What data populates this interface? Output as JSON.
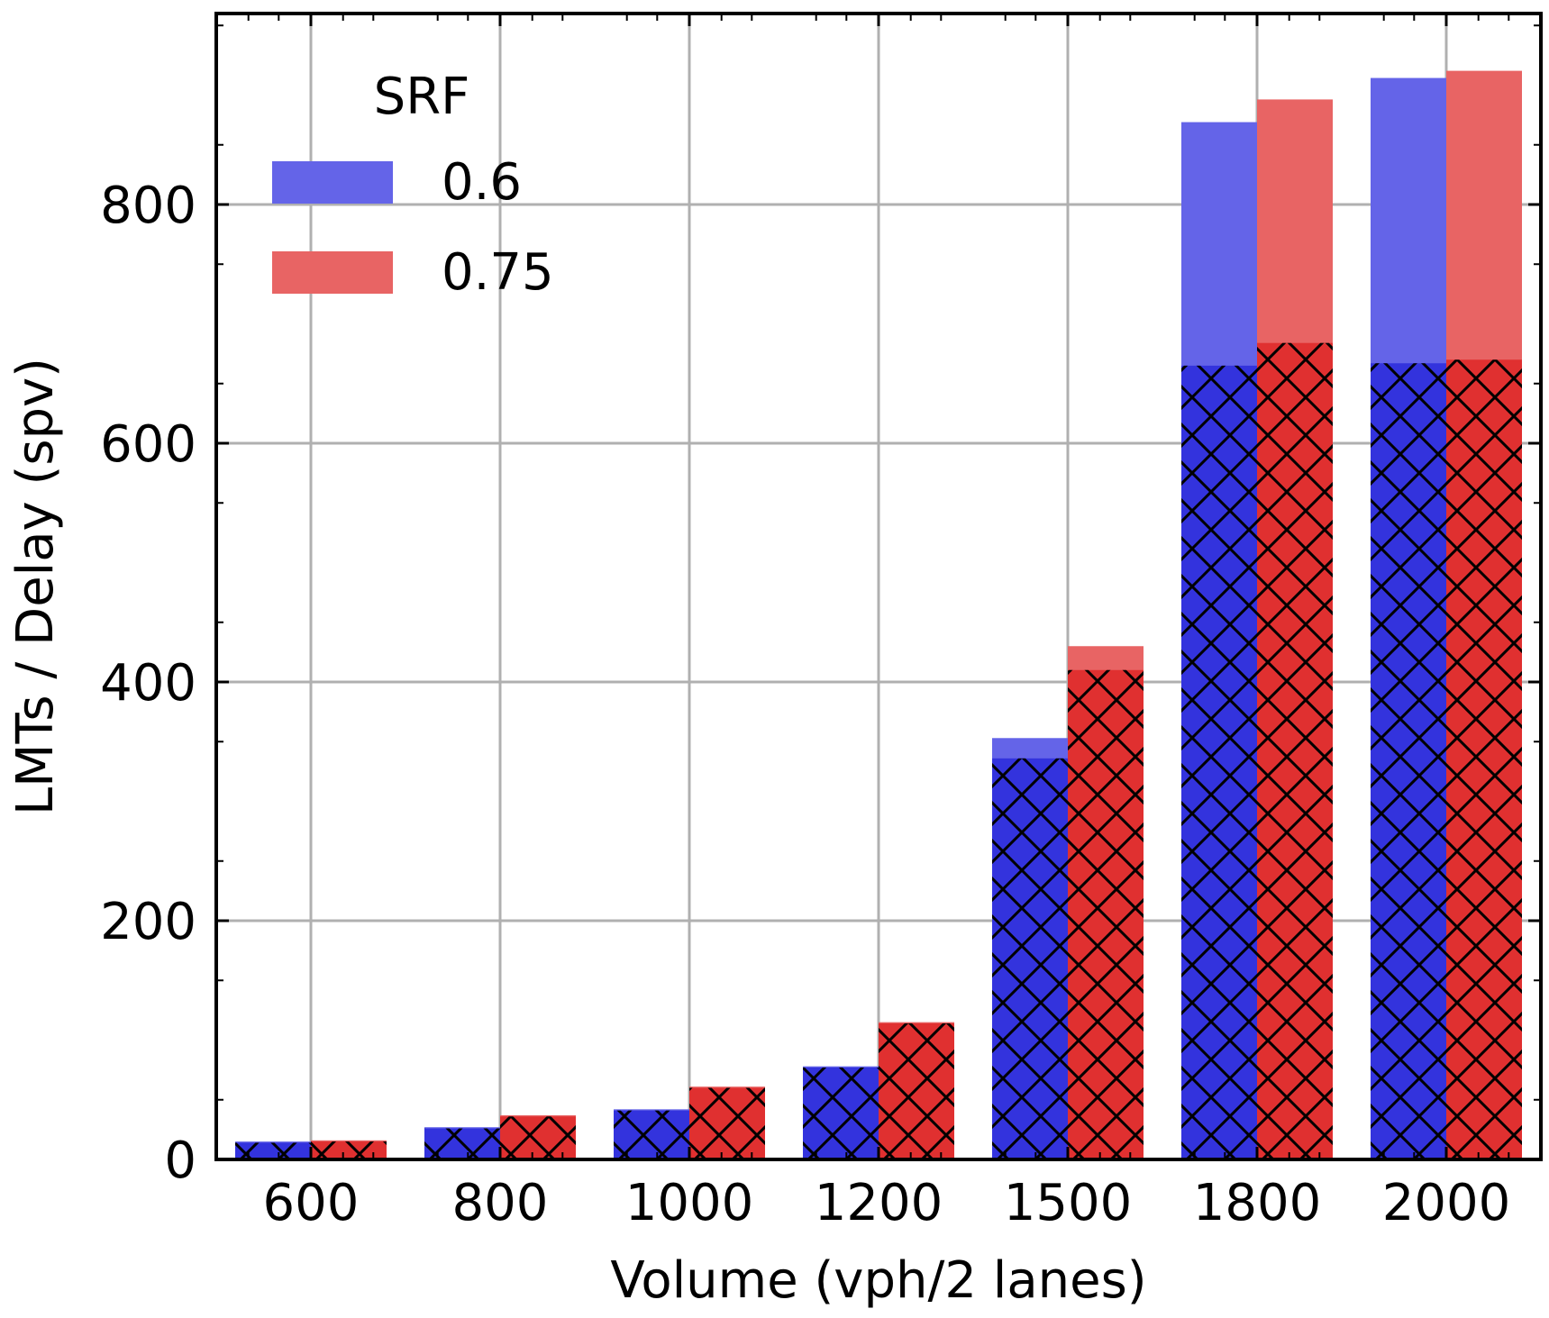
{
  "chart_data": {
    "type": "bar",
    "title": "",
    "xlabel": "Volume (vph/2 lanes)",
    "ylabel": "LMTs / Delay (spv)",
    "categories": [
      "600",
      "800",
      "1000",
      "1200",
      "1500",
      "1800",
      "2000"
    ],
    "ylim": [
      0,
      960
    ],
    "yticks": [
      "0",
      "200",
      "400",
      "600",
      "800"
    ],
    "grid": true,
    "legend": {
      "title": "SRF",
      "position": "top-left"
    },
    "series": [
      {
        "name": "0.6",
        "color": "#3333dd",
        "light_color": "#6464e8",
        "total": [
          15,
          27,
          42,
          78,
          353,
          869,
          906
        ],
        "hatched": [
          14,
          26,
          41,
          77,
          336,
          665,
          667
        ]
      },
      {
        "name": "0.75",
        "color": "#e03030",
        "light_color": "#e86464",
        "total": [
          16,
          37,
          61,
          115,
          430,
          888,
          912
        ],
        "hatched": [
          15,
          36,
          60,
          114,
          410,
          684,
          670
        ]
      }
    ]
  }
}
